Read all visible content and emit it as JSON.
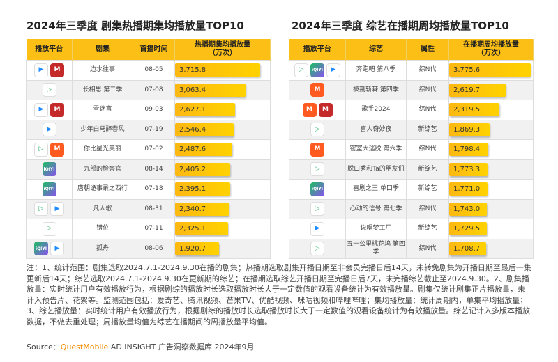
{
  "left": {
    "title": "2024年三季度 剧集热播期集均播放量TOP10",
    "headers": [
      "播放平台",
      "剧集",
      "首播时间",
      "热播期集均播放量\n（万次）"
    ],
    "rows": [
      {
        "platforms": [
          "youku",
          "migu"
        ],
        "name": "边水往事",
        "date": "08-05",
        "value": 3715.8,
        "value_label": "3,715.8"
      },
      {
        "platforms": [
          "tencent"
        ],
        "name": "长相思 第二季",
        "date": "07-08",
        "value": 3063.4,
        "value_label": "3,063.4"
      },
      {
        "platforms": [
          "youku",
          "migu"
        ],
        "name": "雪迷宫",
        "date": "09-03",
        "value": 2627.1,
        "value_label": "2,627.1"
      },
      {
        "platforms": [
          "youku"
        ],
        "name": "少年白马醉春风",
        "date": "07-19",
        "value": 2546.4,
        "value_label": "2,546.4"
      },
      {
        "platforms": [
          "tencent",
          "mango"
        ],
        "name": "你比星光美丽",
        "date": "07-02",
        "value": 2487.6,
        "value_label": "2,487.6"
      },
      {
        "platforms": [
          "iqiyi"
        ],
        "name": "九部的检察官",
        "date": "08-14",
        "value": 2405.2,
        "value_label": "2,405.2"
      },
      {
        "platforms": [
          "iqiyi"
        ],
        "name": "唐朝诡事录之西行",
        "date": "07-18",
        "value": 2395.1,
        "value_label": "2,395.1"
      },
      {
        "platforms": [
          "tencent",
          "youku"
        ],
        "name": "凡人歌",
        "date": "08-31",
        "value": 2340.7,
        "value_label": "2,340.7"
      },
      {
        "platforms": [
          "tencent"
        ],
        "name": "错位",
        "date": "07-11",
        "value": 2325.1,
        "value_label": "2,325.1"
      },
      {
        "platforms": [
          "iqiyi",
          "youku"
        ],
        "name": "孤舟",
        "date": "08-06",
        "value": 1920.7,
        "value_label": "1,920.7"
      }
    ]
  },
  "right": {
    "title": "2024年三季度 综艺在播期周均播放量TOP10",
    "headers": [
      "播放平台",
      "综艺",
      "属性",
      "在播期周均播放量\n（万次）"
    ],
    "rows": [
      {
        "platforms": [
          "tencent",
          "iqiyi",
          "youku"
        ],
        "name": "奔跑吧 第八季",
        "date": "综N代",
        "value": 3775.6,
        "value_label": "3,775.6"
      },
      {
        "platforms": [
          "mango"
        ],
        "name": "披荆斩棘 第四季",
        "date": "综N代",
        "value": 2619.7,
        "value_label": "2,619.7"
      },
      {
        "platforms": [
          "mango",
          "migu"
        ],
        "name": "歌手2024",
        "date": "综N代",
        "value": 2319.5,
        "value_label": "2,319.5"
      },
      {
        "platforms": [
          "tencent"
        ],
        "name": "喜人奇妙夜",
        "date": "新综艺",
        "value": 1869.3,
        "value_label": "1,869.3"
      },
      {
        "platforms": [
          "mango"
        ],
        "name": "密室大逃脱 第六季",
        "date": "综N代",
        "value": 1798.4,
        "value_label": "1,798.4"
      },
      {
        "platforms": [
          "tencent"
        ],
        "name": "脱口秀和Ta的朋友们",
        "date": "新综艺",
        "value": 1773.3,
        "value_label": "1,773.3"
      },
      {
        "platforms": [
          "iqiyi"
        ],
        "name": "喜剧之王 单口季",
        "date": "新综艺",
        "value": 1771.0,
        "value_label": "1,771.0"
      },
      {
        "platforms": [
          "tencent"
        ],
        "name": "心动的信号 第七季",
        "date": "综N代",
        "value": 1743.0,
        "value_label": "1,743.0"
      },
      {
        "platforms": [
          "youku"
        ],
        "name": "说唱梦工厂",
        "date": "新综艺",
        "value": 1729.5,
        "value_label": "1,729.5"
      },
      {
        "platforms": [
          "tencent"
        ],
        "name": "五十公里桃花坞 第四季",
        "date": "综N代",
        "value": 1708.7,
        "value_label": "1,708.7"
      }
    ]
  },
  "notes": "注：1、统计范围：剧集选取2024.7.1-2024.9.30在播的剧集；热播期选取剧集开播日期至非会员完播日后14天，未转免剧集为开播日期至最后一集更新后14天；综艺选取2024.7.1-2024.9.30在更新期的综艺；在播期选取综艺开播日期至完播日后7天，未完播综艺截止至2024.9.30。2、剧集播放量：实时统计用户有效播放行为，根据剧综的播放时长选取播放时长大于一定数值的观看设备统计为有效播放量。剧集仅统计剧集正片播放量，未计入预告片、花絮等。监测范围包括：爱奇艺、腾讯视频、芒果TV、优酷视频、咪咕视频和哔哩哔哩；集均播放量：统计周期内，单集平均播放量；3、综艺播放量：实时统计用户有效播放行为，根据剧综的播放时长选取播放时长大于一定数值的观看设备统计为有效播放量。综艺记计入多版本播放数据，不做去重处理；周播放量均值为综艺在播期间的周播放量平均值。",
  "source": {
    "prefix": "Source：",
    "brand": "QuestMobile",
    "rest": " AD INSIGHT 广告洞察数据库 2024年9月"
  },
  "platform_glyphs": {
    "youku": "▶",
    "tencent": "▷",
    "migu": "M",
    "mango": "M",
    "iqiyi": "iQIYI"
  },
  "colors": {
    "header": "#fcbf16",
    "bar": "#ffc107",
    "brand": "#f08c00"
  }
}
